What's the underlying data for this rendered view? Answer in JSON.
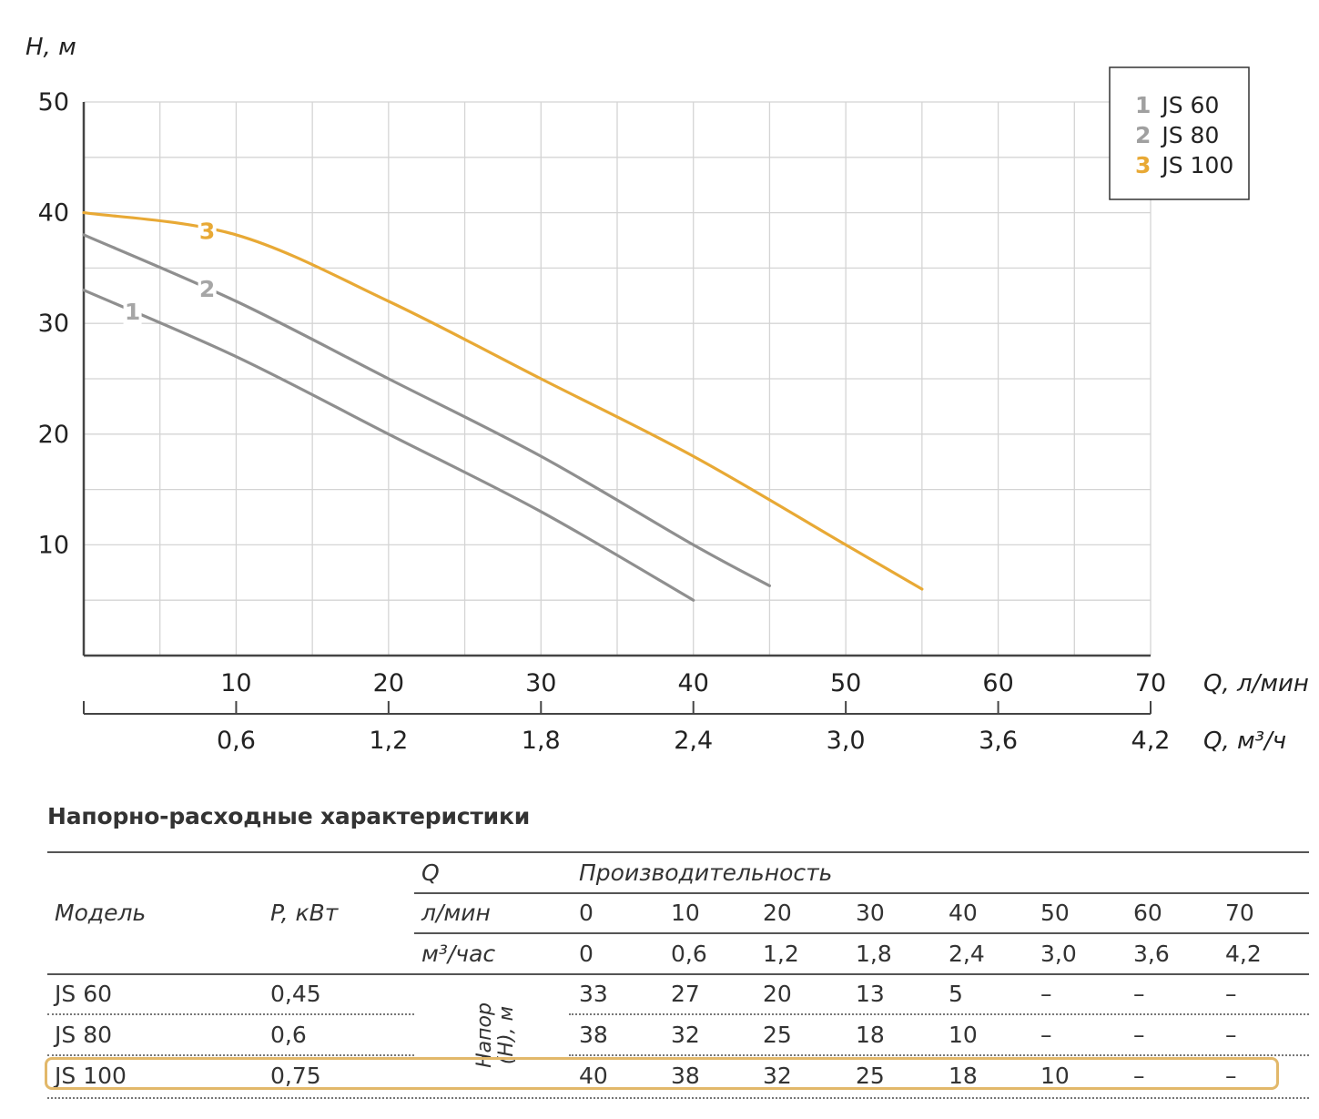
{
  "chart_data": {
    "type": "line",
    "ylabel": "H, м",
    "xlabel": "Q, л/мин",
    "x2label": "Q, м³/ч",
    "xlim": [
      0,
      70
    ],
    "ylim": [
      0,
      50
    ],
    "y_ticks": [
      "10",
      "20",
      "30",
      "40",
      "50"
    ],
    "x_ticks": [
      "10",
      "20",
      "30",
      "40",
      "50",
      "60",
      "70"
    ],
    "x2_ticks": [
      "0,6",
      "1,2",
      "1,8",
      "2,4",
      "3,0",
      "3,6",
      "4,2"
    ],
    "grid": true,
    "legend_position": "top-right",
    "series": [
      {
        "name": "JS 60",
        "label": "1",
        "legend_num": "1",
        "color": "#8f8f8f",
        "x": [
          0,
          10,
          20,
          30,
          40
        ],
        "y": [
          33,
          27,
          20,
          13,
          5
        ]
      },
      {
        "name": "JS 80",
        "label": "2",
        "legend_num": "2",
        "color": "#8f8f8f",
        "x": [
          0,
          10,
          20,
          30,
          40,
          45
        ],
        "y": [
          38,
          32,
          25,
          18,
          10,
          6.3
        ]
      },
      {
        "name": "JS 100",
        "label": "3",
        "legend_num": "3",
        "color": "#e8a935",
        "x": [
          0,
          10,
          20,
          30,
          40,
          50,
          55
        ],
        "y": [
          40,
          38,
          32,
          25,
          18,
          10,
          6
        ]
      }
    ]
  },
  "table": {
    "title": "Напорно-расходные характеристики",
    "col_model": "Модель",
    "col_power": "P, кВт",
    "q_label": "Q",
    "performance_label": "Производительность",
    "unit_lmin": "л/мин",
    "unit_m3": "м³/час",
    "lmin_values": [
      "0",
      "10",
      "20",
      "30",
      "40",
      "50",
      "60",
      "70"
    ],
    "m3_values": [
      "0",
      "0,6",
      "1,2",
      "1,8",
      "2,4",
      "3,0",
      "3,6",
      "4,2"
    ],
    "head_label_line1": "Напор",
    "head_label_line2": "(H), м",
    "rows": [
      {
        "model": "JS 60",
        "power": "0,45",
        "values": [
          "33",
          "27",
          "20",
          "13",
          "5",
          "–",
          "–",
          "–"
        ]
      },
      {
        "model": "JS 80",
        "power": "0,6",
        "values": [
          "38",
          "32",
          "25",
          "18",
          "10",
          "–",
          "–",
          "–"
        ]
      },
      {
        "model": "JS 100",
        "power": "0,75",
        "values": [
          "40",
          "38",
          "32",
          "25",
          "18",
          "10",
          "–",
          "–"
        ],
        "highlighted": true
      }
    ]
  },
  "colors": {
    "highlight": "#e2b86a",
    "grid": "#d4d4d4",
    "axis": "#444444"
  }
}
